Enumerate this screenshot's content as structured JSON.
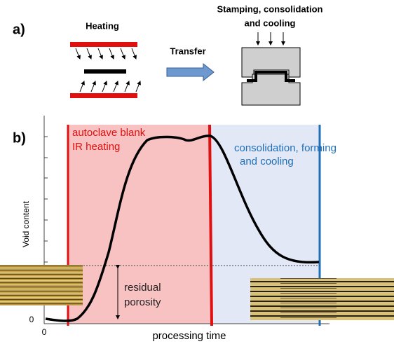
{
  "panel_a": {
    "label": "a)",
    "heating": "Heating",
    "transfer": "Transfer",
    "stamping": [
      "Stamping, consolidation",
      "and cooling"
    ]
  },
  "panel_b": {
    "label": "b)",
    "y_label": "Void content",
    "x_label": "processing time",
    "y_origin": "0",
    "x_origin": "0",
    "zone_heating": [
      "autoclave blank",
      "IR heating"
    ],
    "zone_forming": [
      "consolidation, forming",
      "and cooling"
    ],
    "annotation": [
      "residual",
      "porosity"
    ]
  }
}
